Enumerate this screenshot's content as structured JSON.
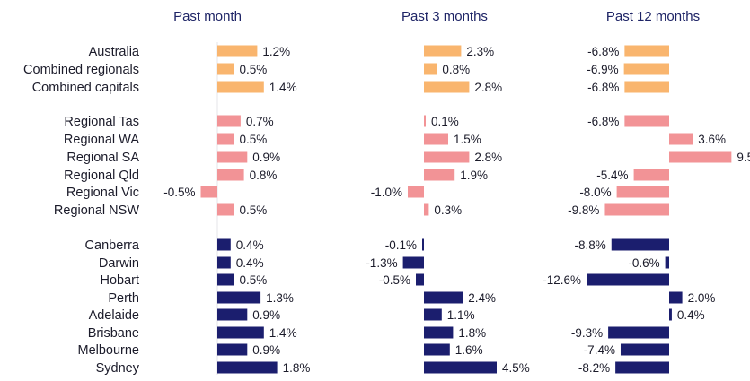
{
  "chart_data": {
    "type": "bar",
    "orientation": "horizontal",
    "panels": [
      "Past month",
      "Past 3 months",
      "Past 12 months"
    ],
    "categories": [
      "Australia",
      "Combined regionals",
      "Combined capitals",
      "Regional Tas",
      "Regional WA",
      "Regional SA",
      "Regional Qld",
      "Regional Vic",
      "Regional NSW",
      "Canberra",
      "Darwin",
      "Hobart",
      "Perth",
      "Adelaide",
      "Brisbane",
      "Melbourne",
      "Sydney"
    ],
    "groups": [
      {
        "color": "#f9b56e",
        "members": [
          "Australia",
          "Combined regionals",
          "Combined capitals"
        ]
      },
      {
        "color": "#f29396",
        "members": [
          "Regional Tas",
          "Regional WA",
          "Regional SA",
          "Regional Qld",
          "Regional Vic",
          "Regional NSW"
        ]
      },
      {
        "color": "#1b1e6e",
        "members": [
          "Canberra",
          "Darwin",
          "Hobart",
          "Perth",
          "Adelaide",
          "Brisbane",
          "Melbourne",
          "Sydney"
        ]
      }
    ],
    "series": [
      {
        "name": "Past month",
        "values": [
          1.2,
          0.5,
          1.4,
          0.7,
          0.5,
          0.9,
          0.8,
          -0.5,
          0.5,
          0.4,
          0.4,
          0.5,
          1.3,
          0.9,
          1.4,
          0.9,
          1.8
        ]
      },
      {
        "name": "Past 3 months",
        "values": [
          2.3,
          0.8,
          2.8,
          0.1,
          1.5,
          2.8,
          1.9,
          -1.0,
          0.3,
          -0.1,
          -1.3,
          -0.5,
          2.4,
          1.1,
          1.8,
          1.6,
          4.5
        ]
      },
      {
        "name": "Past 12 months",
        "values": [
          -6.8,
          -6.9,
          -6.8,
          -6.8,
          3.6,
          9.5,
          -5.4,
          -8.0,
          -9.8,
          -8.8,
          -0.6,
          -12.6,
          2.0,
          0.4,
          -9.3,
          -7.4,
          -8.2
        ]
      }
    ],
    "value_suffix": "%",
    "grid": false,
    "legend": "none"
  }
}
